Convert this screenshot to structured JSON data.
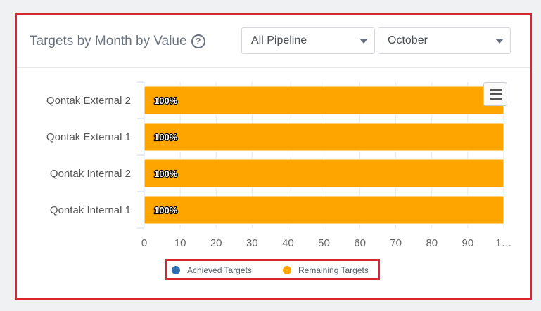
{
  "header": {
    "title": "Targets by Month by Value",
    "pipeline_select": "All Pipeline",
    "month_select": "October"
  },
  "legend": {
    "achieved": "Achieved Targets",
    "remaining": "Remaining Targets"
  },
  "colors": {
    "achieved": "#2f6eb5",
    "remaining": "#ffa500",
    "frame": "#d7262e"
  },
  "chart_data": {
    "type": "bar",
    "orientation": "horizontal",
    "stacked": true,
    "categories": [
      "Qontak External 2",
      "Qontak External 1",
      "Qontak Internal 2",
      "Qontak Internal 1"
    ],
    "series": [
      {
        "name": "Achieved Targets",
        "values": [
          0,
          0,
          0,
          0
        ]
      },
      {
        "name": "Remaining Targets",
        "values": [
          100,
          100,
          100,
          100
        ]
      }
    ],
    "data_labels": [
      "100%",
      "100%",
      "100%",
      "100%"
    ],
    "x_ticks": [
      "0",
      "10",
      "20",
      "30",
      "40",
      "50",
      "60",
      "70",
      "80",
      "90",
      "1…"
    ],
    "xlim": [
      0,
      100
    ],
    "grid": true,
    "legend_position": "bottom"
  }
}
